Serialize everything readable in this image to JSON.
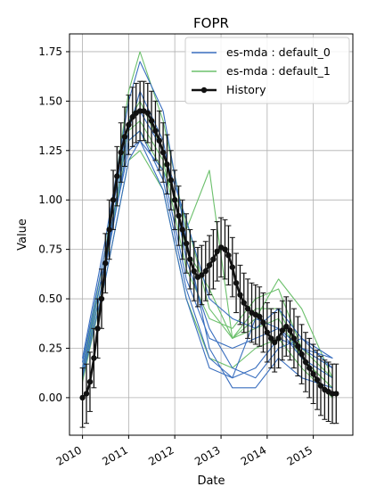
{
  "chart_data": {
    "type": "line",
    "title": "FOPR",
    "xlabel": "Date",
    "ylabel": "Value",
    "x_axis": {
      "type": "date",
      "ticks": [
        "2010",
        "2011",
        "2012",
        "2013",
        "2014",
        "2015"
      ],
      "range": [
        "2009-09-20",
        "2015-11-10"
      ]
    },
    "y_axis": {
      "ticks": [
        "0.00",
        "0.25",
        "0.50",
        "0.75",
        "1.00",
        "1.25",
        "1.50",
        "1.75"
      ],
      "range": [
        -0.19,
        1.84
      ]
    },
    "grid": true,
    "legend": {
      "position": "top-right",
      "entries": [
        "es-mda : default_0",
        "es-mda : default_1",
        "History"
      ]
    },
    "colors": {
      "default_0": "#3a6fbf",
      "default_1": "#6cc06c",
      "history": "#111111"
    },
    "series": [
      {
        "name": "History",
        "x": [
          "2010-01-01",
          "2010-02-01",
          "2010-03-01",
          "2010-04-01",
          "2010-05-01",
          "2010-06-01",
          "2010-07-01",
          "2010-08-01",
          "2010-09-01",
          "2010-10-01",
          "2010-11-01",
          "2010-12-01",
          "2011-01-01",
          "2011-02-01",
          "2011-03-01",
          "2011-04-01",
          "2011-05-01",
          "2011-06-01",
          "2011-07-01",
          "2011-08-01",
          "2011-09-01",
          "2011-10-01",
          "2011-11-01",
          "2011-12-01",
          "2012-01-01",
          "2012-02-01",
          "2012-03-01",
          "2012-04-01",
          "2012-05-01",
          "2012-06-01",
          "2012-07-01",
          "2012-08-01",
          "2012-09-01",
          "2012-10-01",
          "2012-11-01",
          "2012-12-01",
          "2013-01-01",
          "2013-02-01",
          "2013-03-01",
          "2013-04-01",
          "2013-05-01",
          "2013-06-01",
          "2013-07-01",
          "2013-08-01",
          "2013-09-01",
          "2013-10-01",
          "2013-11-01",
          "2013-12-01",
          "2014-01-01",
          "2014-02-01",
          "2014-03-01",
          "2014-04-01",
          "2014-05-01",
          "2014-06-01",
          "2014-07-01",
          "2014-08-01",
          "2014-09-01",
          "2014-10-01",
          "2014-11-01",
          "2014-12-01",
          "2015-01-01",
          "2015-02-01",
          "2015-03-01",
          "2015-04-01",
          "2015-05-01",
          "2015-06-01",
          "2015-07-01"
        ],
        "y": [
          0.0,
          0.02,
          0.08,
          0.2,
          0.35,
          0.5,
          0.68,
          0.85,
          1.0,
          1.12,
          1.24,
          1.32,
          1.38,
          1.42,
          1.44,
          1.45,
          1.45,
          1.44,
          1.4,
          1.35,
          1.3,
          1.24,
          1.18,
          1.1,
          1.0,
          0.92,
          0.85,
          0.78,
          0.7,
          0.64,
          0.61,
          0.62,
          0.64,
          0.67,
          0.7,
          0.74,
          0.76,
          0.75,
          0.72,
          0.66,
          0.58,
          0.52,
          0.48,
          0.45,
          0.43,
          0.42,
          0.41,
          0.38,
          0.33,
          0.3,
          0.28,
          0.3,
          0.34,
          0.36,
          0.34,
          0.3,
          0.26,
          0.22,
          0.18,
          0.15,
          0.12,
          0.09,
          0.06,
          0.04,
          0.03,
          0.02,
          0.02
        ],
        "error": 0.15
      },
      {
        "name": "es-mda : default_0",
        "x": [
          "2010-01-01",
          "2010-07-01",
          "2011-01-01",
          "2011-04-01",
          "2011-10-01",
          "2012-04-01",
          "2012-10-01",
          "2013-04-01",
          "2013-10-01",
          "2014-04-01",
          "2014-10-01",
          "2015-06-01"
        ],
        "lines": [
          [
            0.2,
            0.8,
            1.5,
            1.7,
            1.45,
            0.8,
            0.25,
            0.05,
            0.05,
            0.2,
            0.1,
            0.05
          ],
          [
            0.15,
            0.7,
            1.35,
            1.55,
            1.3,
            0.7,
            0.35,
            0.15,
            0.1,
            0.25,
            0.3,
            0.2
          ],
          [
            0.1,
            0.6,
            1.2,
            1.3,
            1.15,
            0.6,
            0.3,
            0.25,
            0.3,
            0.35,
            0.2,
            0.1
          ],
          [
            0.18,
            0.75,
            1.4,
            1.45,
            1.25,
            0.9,
            0.5,
            0.4,
            0.35,
            0.45,
            0.3,
            0.15
          ],
          [
            0.12,
            0.65,
            1.3,
            1.35,
            1.1,
            0.55,
            0.2,
            0.1,
            0.15,
            0.3,
            0.25,
            0.2
          ],
          [
            0.15,
            0.7,
            1.25,
            1.3,
            1.05,
            0.5,
            0.15,
            0.1,
            0.4,
            0.35,
            0.25,
            0.15
          ]
        ]
      },
      {
        "name": "es-mda : default_1",
        "x": [
          "2010-01-01",
          "2010-07-01",
          "2011-01-01",
          "2011-04-01",
          "2011-10-01",
          "2012-04-01",
          "2012-10-01",
          "2013-04-01",
          "2013-10-01",
          "2014-04-01",
          "2014-10-01",
          "2015-06-01"
        ],
        "lines": [
          [
            0.15,
            0.75,
            1.55,
            1.75,
            1.4,
            0.85,
            1.15,
            0.3,
            0.4,
            0.6,
            0.45,
            0.1
          ],
          [
            0.1,
            0.65,
            1.4,
            1.5,
            1.25,
            0.75,
            0.55,
            0.3,
            0.45,
            0.45,
            0.2,
            0.05
          ],
          [
            0.12,
            0.7,
            1.35,
            1.4,
            1.2,
            0.65,
            0.4,
            0.35,
            0.5,
            0.55,
            0.25,
            0.1
          ],
          [
            0.08,
            0.6,
            1.2,
            1.25,
            1.05,
            0.5,
            0.2,
            0.15,
            0.25,
            0.3,
            0.15,
            0.0
          ],
          [
            0.14,
            0.7,
            1.3,
            1.35,
            1.15,
            0.9,
            0.45,
            0.3,
            0.35,
            0.4,
            0.2,
            0.05
          ]
        ]
      }
    ]
  }
}
